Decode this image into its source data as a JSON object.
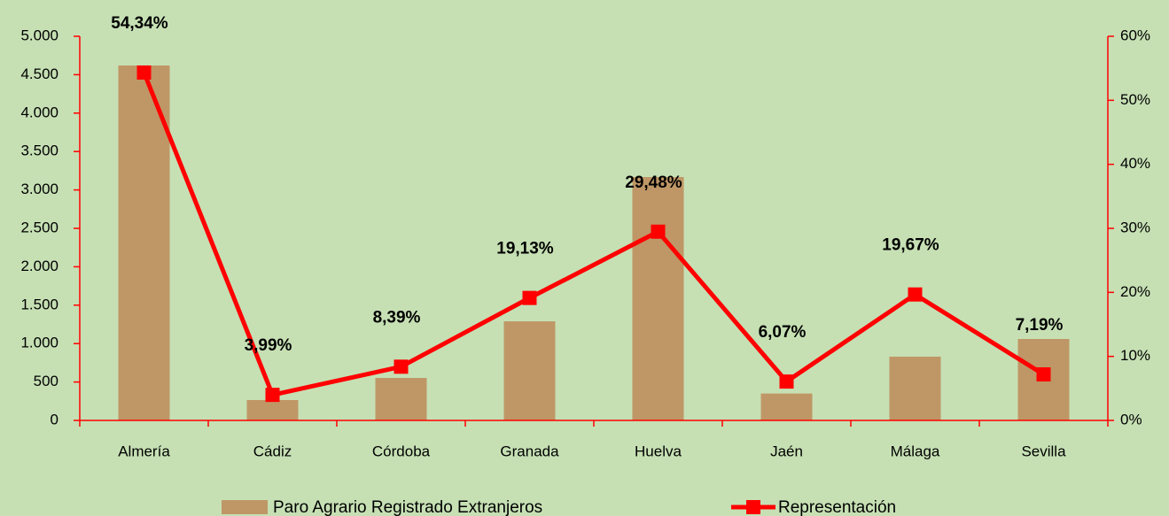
{
  "chart_data": {
    "type": "bar-line",
    "categories": [
      "Almería",
      "Cádiz",
      "Córdoba",
      "Granada",
      "Huelva",
      "Jaén",
      "Málaga",
      "Sevilla"
    ],
    "series": [
      {
        "name": "Paro Agrario Registrado Extranjeros",
        "color": "#bf9766",
        "type": "bar",
        "values": [
          4620,
          265,
          553,
          1290,
          3168,
          350,
          830,
          1060
        ]
      },
      {
        "name": "Representación",
        "color": "#ff0000",
        "type": "line",
        "axis": "y2",
        "values": [
          54.34,
          3.99,
          8.39,
          19.13,
          29.48,
          6.07,
          19.67,
          7.19
        ],
        "value_labels": [
          "54,34%",
          "3,99%",
          "8,39%",
          "19,13%",
          "29,48%",
          "6,07%",
          "19,67%",
          "7,19%"
        ]
      }
    ],
    "ylim": [
      0,
      5000
    ],
    "yticks": [
      0,
      500,
      {
        "value": 1000,
        "label": "1.000"
      },
      {
        "value": 1500,
        "label": "1.500"
      },
      {
        "value": 2000,
        "label": "2.000"
      },
      {
        "value": 2500,
        "label": "2.500"
      },
      {
        "value": 3000,
        "label": "3.000"
      },
      {
        "value": 3500,
        "label": "3.500"
      },
      {
        "value": 4000,
        "label": "4.000"
      },
      {
        "value": 4500,
        "label": "4.500"
      },
      {
        "value": 5000,
        "label": "5.000"
      }
    ],
    "y2lim": [
      0,
      60
    ],
    "y2ticks": [
      {
        "value": 0,
        "label": "0%"
      },
      {
        "value": 10,
        "label": "10%"
      },
      {
        "value": 20,
        "label": "20%"
      },
      {
        "value": 30,
        "label": "30%"
      },
      {
        "value": 40,
        "label": "40%"
      },
      {
        "value": 50,
        "label": "50%"
      },
      {
        "value": 60,
        "label": "60%"
      }
    ],
    "axis_color": "#ff0000"
  }
}
